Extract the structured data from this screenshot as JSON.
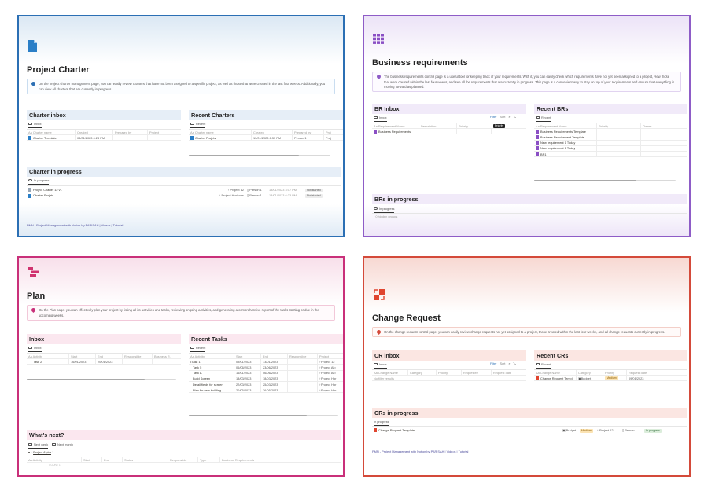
{
  "footer_text": "PMN - Project Management with Notion by PARISAH",
  "footer_videos": "Videos",
  "footer_tutorial": "Tutorial",
  "footer_sep": "|",
  "project_charter": {
    "title": "Project Charter",
    "accent": "#2b6fb4",
    "callout": "On the project charter management page, you can easily review charters that have not been assigned to a specific project, as well as those that were created in the last four weeks. Additionally, you can view all charters that are currently in progress.",
    "inbox": {
      "heading": "Charter inbox",
      "view": "Inbox",
      "columns": [
        "Aa Charter name",
        "Created",
        "Prepared by",
        "Project"
      ],
      "rows": [
        [
          "Charter Template",
          "03/01/2023 6:23 PM",
          "",
          ""
        ]
      ]
    },
    "recent": {
      "heading": "Recent Charters",
      "view": "Recent",
      "columns": [
        "Aa Charter name",
        "Created",
        "Prepared by",
        "Proj"
      ],
      "rows": [
        [
          "Charter Projets",
          "13/01/2023 6:33 PM",
          "Person 1",
          "Proj"
        ]
      ]
    },
    "progress": {
      "heading": "Charter in progress",
      "view": "In progress",
      "rows": [
        {
          "name": "Project Charter 12 v1",
          "project": "Project 12",
          "person": "Person 1",
          "date": "13/01/2023 3:07 PM",
          "status": "Not started"
        },
        {
          "name": "Charter Projets",
          "project": "Project Horizons",
          "person": "Person 1",
          "date": "18/01/2023 6:33 PM",
          "status": "Not started"
        }
      ]
    }
  },
  "business_requirements": {
    "title": "Business requirements",
    "accent": "#8e5cc7",
    "callout": "The business requirements control page is a useful tool for keeping track of your requirements. With it, you can easily check which requirements have not yet been assigned to a project, view those that were created within the last four weeks, and see all the requirements that are currently in progress. This page is a convenient way to stay on top of your requirements and ensure that everything is moving forward as planned.",
    "inbox": {
      "heading": "BR Inbox",
      "view": "Inbox",
      "filter": "Filter",
      "sort": "Sort",
      "columns": [
        "Aa Requirement Name",
        "Description",
        "Priority",
        "Priority"
      ],
      "rows": [
        [
          "Business Requirements",
          "",
          "",
          ""
        ]
      ]
    },
    "recent": {
      "heading": "Recent BRs",
      "view": "Recent",
      "columns": [
        "Aa Requirement Name",
        "Priority",
        "Owner"
      ],
      "rows": [
        [
          "Business Requirements Template",
          "",
          ""
        ],
        [
          "Business Requirement Template",
          "",
          ""
        ],
        [
          "New requirement  1 Today",
          "",
          ""
        ],
        [
          "New requirement  1 Today",
          "",
          ""
        ],
        [
          "BR1",
          "",
          ""
        ]
      ]
    },
    "progress": {
      "heading": "BRs in progress",
      "view": "In progress",
      "hidden": "0 hidden groups"
    }
  },
  "plan": {
    "title": "Plan",
    "accent": "#c9307a",
    "callout": "On the Plan page, you can effectively plan your project by listing all its activities and tasks, reviewing ongoing activities, and generating a comprehensive report of the tasks starting or due in the upcoming weeks.",
    "inbox": {
      "heading": "Inbox",
      "view": "Inbox",
      "columns": [
        "Aa Activity",
        "Start",
        "End",
        "Responsible",
        "Business R."
      ],
      "rows": [
        [
          "Task 2",
          "16/01/2023",
          "20/01/2023",
          "",
          ""
        ]
      ]
    },
    "recent": {
      "heading": "Recent Tasks",
      "view": "Recent",
      "columns": [
        "Aa Activity",
        "Start",
        "End",
        "Responsible",
        "Project"
      ],
      "rows": [
        [
          "Task 1",
          "09/01/2023",
          "13/01/2023",
          "",
          "Project 12"
        ],
        [
          "Task 5",
          "06/06/2023",
          "23/06/2023",
          "",
          "Project Alp"
        ],
        [
          "Task A",
          "16/01/2023",
          "06/06/2023",
          "",
          "Project Alp"
        ],
        [
          "Build Screen",
          "13/03/2023",
          "18/03/2023",
          "",
          "Project Hor"
        ],
        [
          "Detail fields for screen",
          "22/03/2023",
          "25/03/2023",
          "",
          "Project Hor"
        ],
        [
          "Plan for new building",
          "20/05/2023",
          "26/05/2023",
          "",
          "Project Hor"
        ]
      ]
    },
    "next": {
      "heading": "What's next?",
      "tab1": "Next week",
      "tab2": "Next month",
      "group": "Project Alpha",
      "group_count": "1",
      "columns": [
        "Aa Activity",
        "Start",
        "End",
        "Status",
        "Responsible",
        "Type",
        "Business Requirements"
      ],
      "count": "COUNT 1"
    }
  },
  "change_request": {
    "title": "Change Request",
    "accent": "#d44a3a",
    "callout": "On the change request control page, you can easily review change requests not yet assigned to a project, those created within the last four weeks, and all change requests currently in progress.",
    "inbox": {
      "heading": "CR inbox",
      "view": "Inbox",
      "filter": "Filter",
      "sort": "Sort",
      "columns": [
        "Aa Change Name",
        "Category",
        "Priority",
        "Requester",
        "Request date"
      ],
      "empty": "No filter results"
    },
    "recent": {
      "heading": "Recent CRs",
      "view": "Recent",
      "columns": [
        "Aa Change Name",
        "Category",
        "Priority",
        "Request date"
      ],
      "rows": [
        [
          "Change Request Templ",
          "Budget",
          "Medium",
          "09/01/2023"
        ]
      ]
    },
    "progress": {
      "heading": "CRs in progress",
      "view": "In progress",
      "row": {
        "name": "Change Request Template",
        "category": "Budget",
        "priority": "Medium",
        "project": "Project 12",
        "person": "Person 1",
        "status": "In progress"
      }
    }
  }
}
